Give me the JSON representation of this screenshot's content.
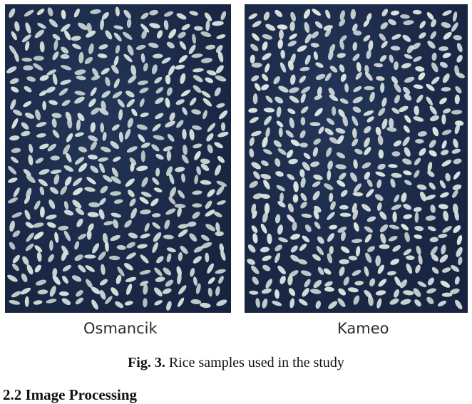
{
  "figure": {
    "panels": [
      {
        "label": "Osmancik",
        "background_color": "#1d2c4c",
        "grain_color": "#d6e0dc"
      },
      {
        "label": "Kameo",
        "background_color": "#1d2c4c",
        "grain_color": "#dce4e0"
      }
    ],
    "caption": {
      "number": "Fig. 3.",
      "text": "Rice samples used in the study"
    }
  },
  "section": {
    "heading": "2.2 Image Processing"
  }
}
